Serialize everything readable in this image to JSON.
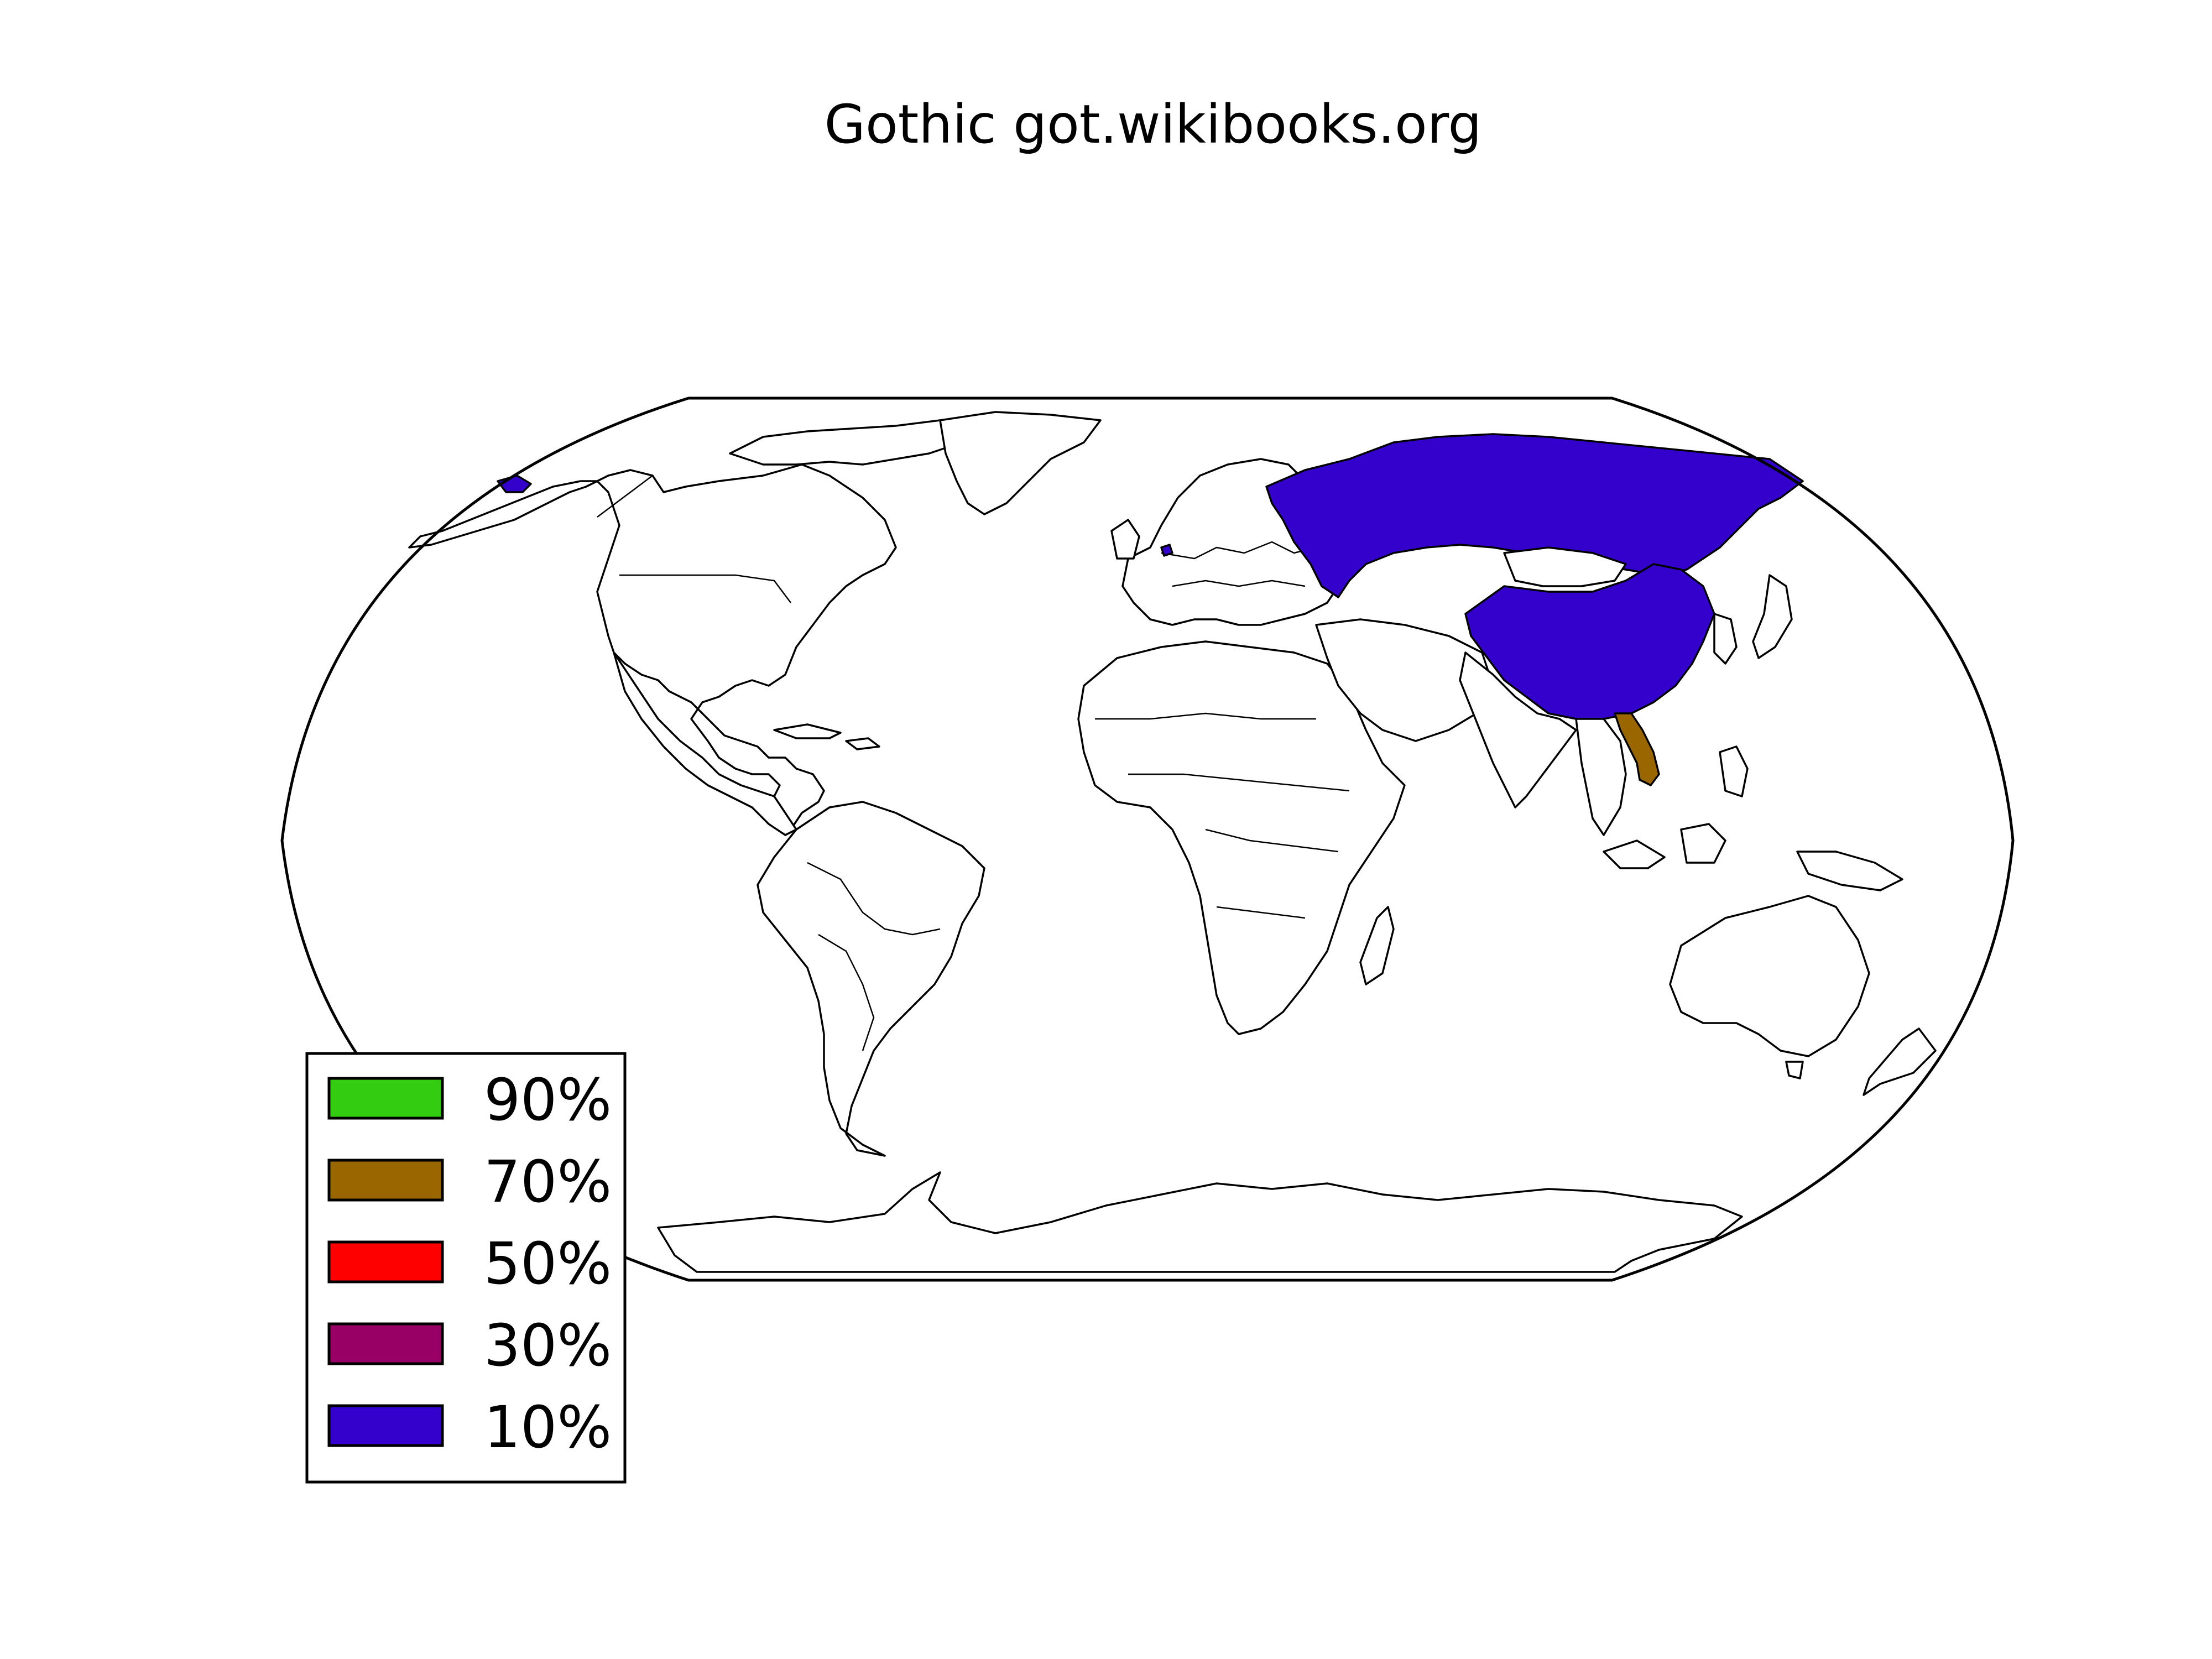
{
  "title": "Gothic got.wikibooks.org",
  "legend": {
    "placement": "bottom-left",
    "entries": [
      {
        "label": "90%",
        "color": "#33cc11"
      },
      {
        "label": "70%",
        "color": "#996600"
      },
      {
        "label": "50%",
        "color": "#ff0000"
      },
      {
        "label": "30%",
        "color": "#990066"
      },
      {
        "label": "10%",
        "color": "#3300cc"
      }
    ]
  },
  "map": {
    "projection": "Robinson",
    "boundary_color": "#000000",
    "land_color": "#ffffff",
    "highlighted_regions": [
      {
        "region": "Russia",
        "level": "10%",
        "color": "#3300cc"
      },
      {
        "region": "China",
        "level": "10%",
        "color": "#3300cc"
      },
      {
        "region": "Netherlands",
        "level": "10%",
        "color": "#3300cc"
      },
      {
        "region": "Vietnam",
        "level": "70%",
        "color": "#996600"
      }
    ]
  }
}
